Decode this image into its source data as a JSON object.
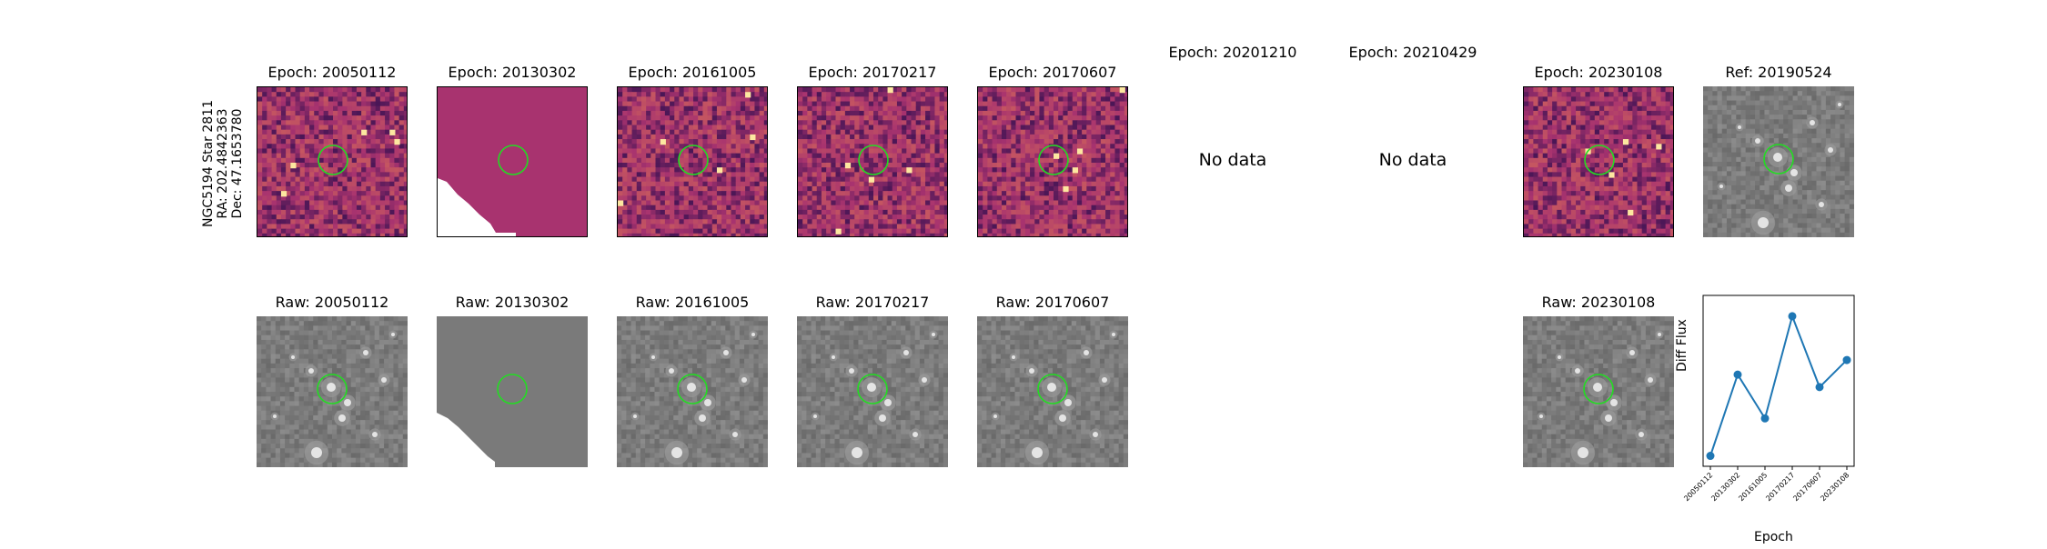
{
  "star": {
    "name": "NGC5194 Star 2811",
    "ra": "RA: 202.4842363",
    "dec": "Dec: 47.1653780"
  },
  "diff_panels": [
    {
      "title": "Epoch: 20050112",
      "state": "image"
    },
    {
      "title": "Epoch: 20130302",
      "state": "partial"
    },
    {
      "title": "Epoch: 20161005",
      "state": "image"
    },
    {
      "title": "Epoch: 20170217",
      "state": "image"
    },
    {
      "title": "Epoch: 20170607",
      "state": "image"
    },
    {
      "title": "Epoch: 20201210",
      "state": "nodata",
      "nodata_text": "No data"
    },
    {
      "title": "Epoch: 20210429",
      "state": "nodata",
      "nodata_text": "No data"
    },
    {
      "title": "Epoch: 20230108",
      "state": "image"
    },
    {
      "title": "Ref: 20190524",
      "state": "reference"
    }
  ],
  "raw_panels": [
    {
      "title": "Raw: 20050112",
      "state": "image"
    },
    {
      "title": "Raw: 20130302",
      "state": "partial"
    },
    {
      "title": "Raw: 20161005",
      "state": "image"
    },
    {
      "title": "Raw: 20170217",
      "state": "image"
    },
    {
      "title": "Raw: 20170607",
      "state": "image"
    },
    {
      "title": "Raw: 20230108",
      "state": "image"
    }
  ],
  "colors": {
    "diff_base": "#a8336f",
    "diff_dark": "#4a1656",
    "diff_bright": "#f08a4b",
    "raw_base": "#7a7a7a",
    "circle": "#22dd22",
    "line": "#1f77b4"
  },
  "chart_data": {
    "type": "line",
    "xlabel": "Epoch",
    "ylabel": "Diff Flux",
    "categories": [
      "20050112",
      "20130302",
      "20161005",
      "20170217",
      "20170607",
      "20230108"
    ],
    "values": [
      0.5,
      4.4,
      2.3,
      7.2,
      3.8,
      5.1
    ],
    "ylim": [
      0,
      8.2
    ],
    "grid": false,
    "y_ticks_shown": false
  }
}
